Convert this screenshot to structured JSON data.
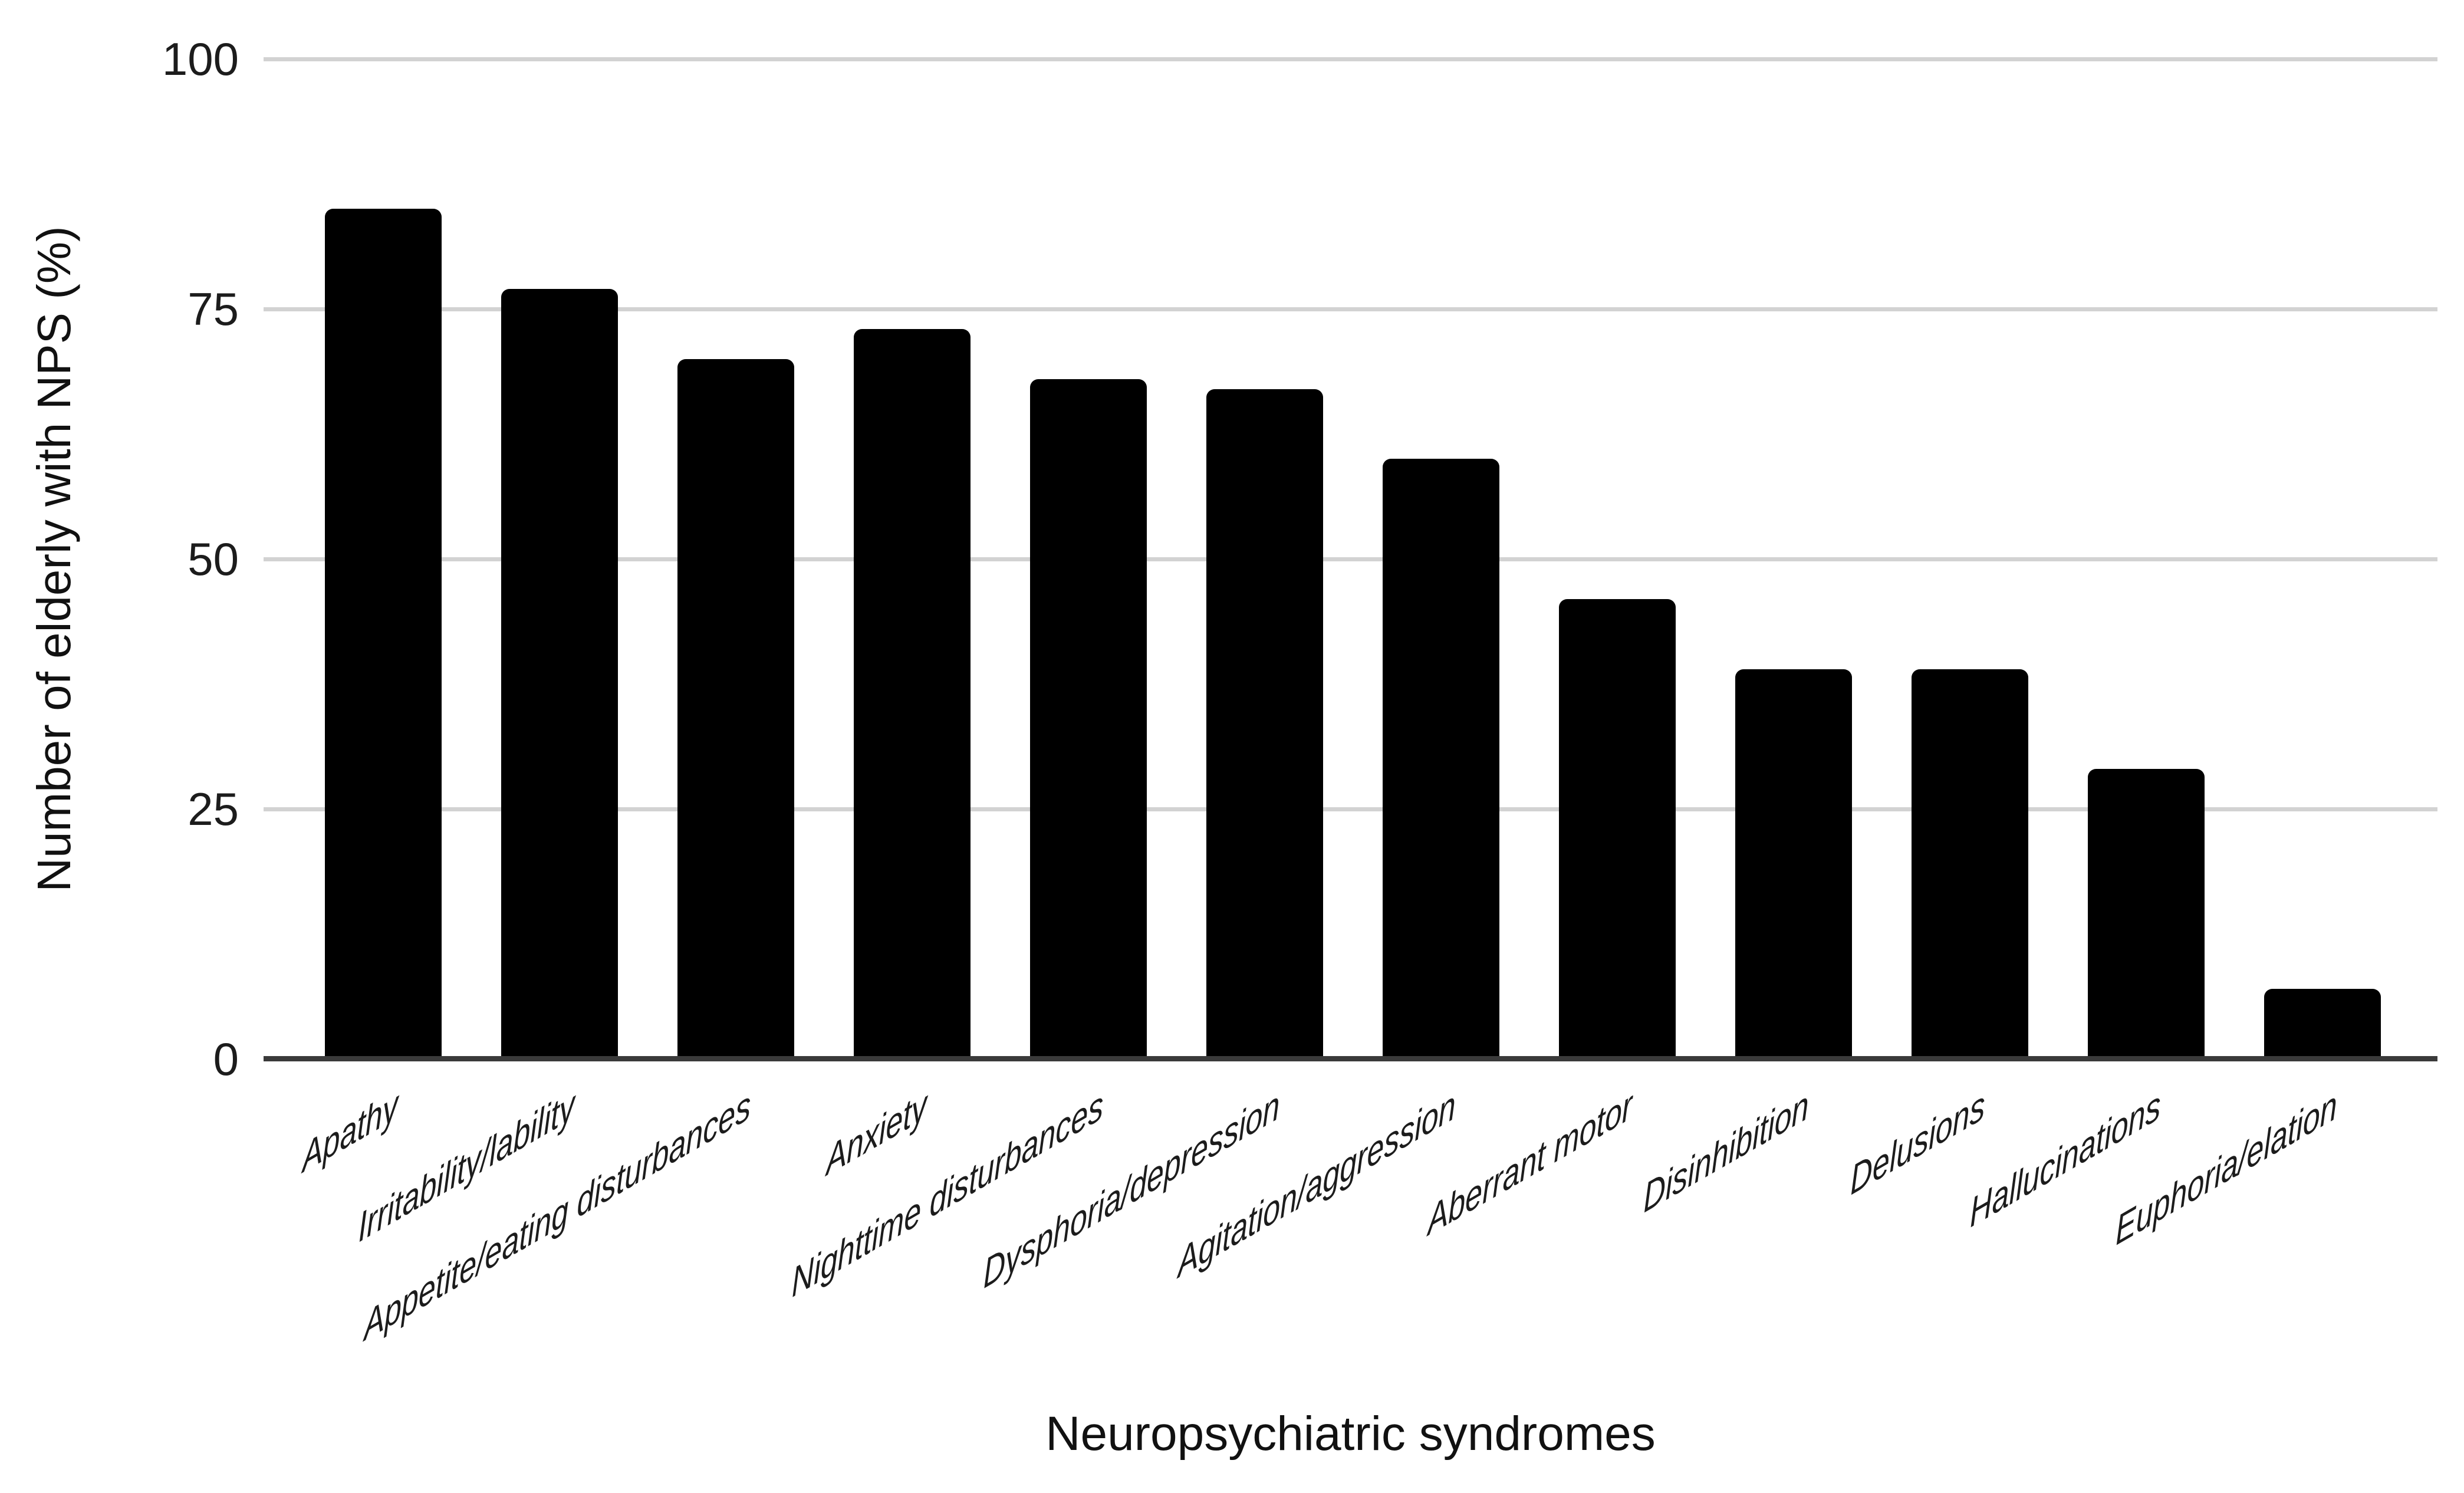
{
  "chart_data": {
    "type": "bar",
    "title": "",
    "xlabel": "Neuropsychiatric syndromes",
    "ylabel": "Number of elderly with NPS (%)",
    "categories": [
      "Apathy",
      "Irritability/lability",
      "Appetite/eating disturbances",
      "Anxiety",
      "Nighttime disturbances",
      "Dysphoria/depression",
      "Agitation/aggression",
      "Aberrant motor",
      "Disinhibition",
      "Delusions",
      "Hallucinations",
      "Euphoria/elation"
    ],
    "values": [
      85,
      77,
      70,
      73,
      68,
      67,
      60,
      46,
      39,
      39,
      29,
      7
    ],
    "ylim": [
      0,
      100
    ],
    "yticks": [
      0,
      25,
      50,
      75,
      100
    ],
    "grid": "horizontal",
    "legend_position": "none",
    "bar_color": "#000000"
  },
  "colors": {
    "background": "#ffffff",
    "bar": "#000000",
    "gridline": "#d2d2d2",
    "axis_line": "#3a3a3a",
    "text": "#111111"
  }
}
